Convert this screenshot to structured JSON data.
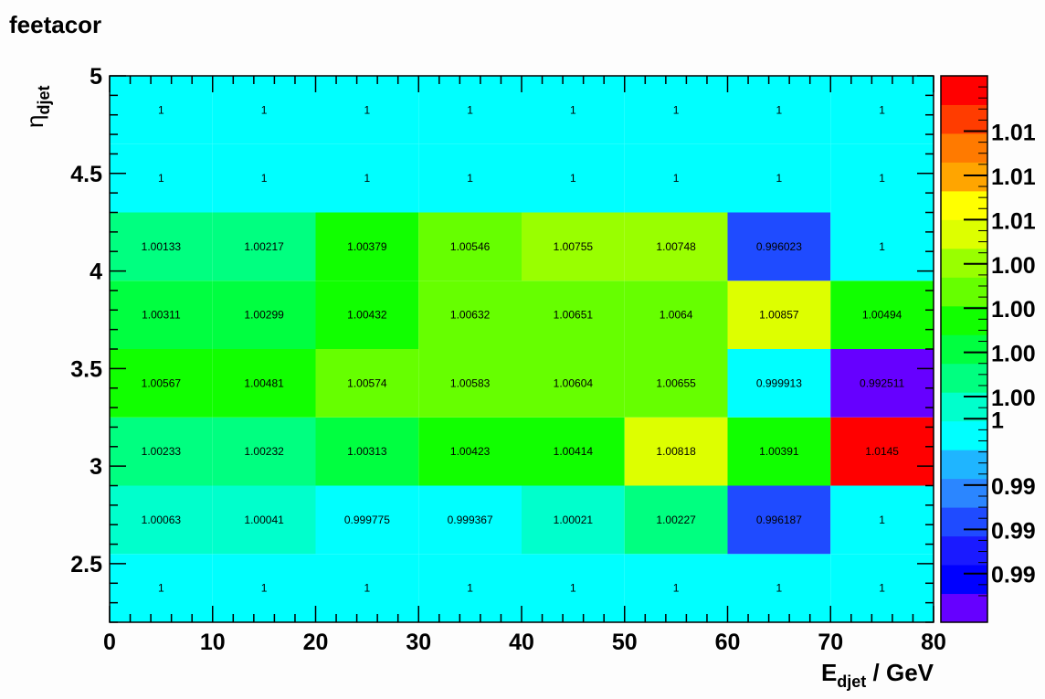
{
  "title": "feetacor",
  "chart_data": {
    "type": "heatmap",
    "xlabel": "E",
    "xlabel_sub": "djet",
    "xlabel_unit": " / GeV",
    "ylabel": "η",
    "ylabel_sub": "djet",
    "x_edges": [
      0,
      10,
      20,
      30,
      40,
      50,
      60,
      70,
      80
    ],
    "y_edges": [
      2.2,
      2.55,
      2.9,
      3.25,
      3.6,
      3.95,
      4.3,
      4.65,
      5.0
    ],
    "xlim": [
      0,
      80
    ],
    "ylim": [
      2.2,
      5.0
    ],
    "x_ticks": [
      "0",
      "10",
      "20",
      "30",
      "40",
      "50",
      "60",
      "70",
      "80"
    ],
    "y_ticks": [
      "2.5",
      "3",
      "3.5",
      "4",
      "4.5",
      "5"
    ],
    "y_tick_values": [
      2.5,
      3.0,
      3.5,
      4.0,
      4.5,
      5.0
    ],
    "z_range": [
      0.9908,
      1.0155
    ],
    "values": [
      [
        1,
        1,
        1,
        1,
        1,
        1,
        1,
        1
      ],
      [
        1.00063,
        1.00041,
        0.999775,
        0.999367,
        1.00021,
        1.00227,
        0.996187,
        1
      ],
      [
        1.00233,
        1.00232,
        1.00313,
        1.00423,
        1.00414,
        1.00818,
        1.00391,
        1.0145
      ],
      [
        1.00567,
        1.00481,
        1.00574,
        1.00583,
        1.00604,
        1.00655,
        0.999913,
        0.992511
      ],
      [
        1.00311,
        1.00299,
        1.00432,
        1.00632,
        1.00651,
        1.0064,
        1.00857,
        1.00494
      ],
      [
        1.00133,
        1.00217,
        1.00379,
        1.00546,
        1.00755,
        1.00748,
        0.996023,
        1
      ],
      [
        1,
        1,
        1,
        1,
        1,
        1,
        1,
        1
      ],
      [
        1,
        1,
        1,
        1,
        1,
        1,
        1,
        1
      ]
    ],
    "labels": [
      [
        "1",
        "1",
        "1",
        "1",
        "1",
        "1",
        "1",
        "1"
      ],
      [
        "1.00063",
        "1.00041",
        "0.999775",
        "0.999367",
        "1.00021",
        "1.00227",
        "0.996187",
        "1"
      ],
      [
        "1.00233",
        "1.00232",
        "1.00313",
        "1.00423",
        "1.00414",
        "1.00818",
        "1.00391",
        "1.0145"
      ],
      [
        "1.00567",
        "1.00481",
        "1.00574",
        "1.00583",
        "1.00604",
        "1.00655",
        "0.999913",
        "0.992511"
      ],
      [
        "1.00311",
        "1.00299",
        "1.00432",
        "1.00632",
        "1.00651",
        "1.0064",
        "1.00857",
        "1.00494"
      ],
      [
        "1.00133",
        "1.00217",
        "1.00379",
        "1.00546",
        "1.00755",
        "1.00748",
        "0.996023",
        "1"
      ],
      [
        "1",
        "1",
        "1",
        "1",
        "1",
        "1",
        "1",
        "1"
      ],
      [
        "1",
        "1",
        "1",
        "1",
        "1",
        "1",
        "1",
        "1"
      ]
    ],
    "palette": [
      "#6600ff",
      "#0000ff",
      "#1a1aff",
      "#1f4bff",
      "#2b86ff",
      "#1fb5ff",
      "#00ffff",
      "#00ffcc",
      "#00ff80",
      "#00ff40",
      "#11ff00",
      "#66ff00",
      "#99ff00",
      "#ddff00",
      "#ffff00",
      "#ffa500",
      "#ff7a00",
      "#ff3c00",
      "#ff0000"
    ],
    "palette_labels": [
      "0.99",
      "0.99",
      "0.99",
      "1",
      "1.00",
      "1.00",
      "1.00",
      "1.00",
      "1.01",
      "1.01",
      "1.01"
    ],
    "cell_colors": [
      [
        "#00ffff",
        "#00ffff",
        "#00ffff",
        "#00ffff",
        "#00ffff",
        "#00ffff",
        "#00ffff",
        "#00ffff"
      ],
      [
        "#00ffcc",
        "#00ffcc",
        "#00ffff",
        "#00ffff",
        "#00ffcc",
        "#00ff80",
        "#1f4bff",
        "#00ffff"
      ],
      [
        "#00ff80",
        "#00ff80",
        "#00ff40",
        "#11ff00",
        "#11ff00",
        "#ddff00",
        "#11ff00",
        "#ff0000"
      ],
      [
        "#11ff00",
        "#11ff00",
        "#66ff00",
        "#66ff00",
        "#66ff00",
        "#66ff00",
        "#00ffff",
        "#6600ff"
      ],
      [
        "#00ff40",
        "#00ff40",
        "#11ff00",
        "#66ff00",
        "#66ff00",
        "#66ff00",
        "#ddff00",
        "#11ff00"
      ],
      [
        "#00ff80",
        "#00ff80",
        "#11ff00",
        "#66ff00",
        "#99ff00",
        "#99ff00",
        "#1f4bff",
        "#00ffff"
      ],
      [
        "#00ffff",
        "#00ffff",
        "#00ffff",
        "#00ffff",
        "#00ffff",
        "#00ffff",
        "#00ffff",
        "#00ffff"
      ],
      [
        "#00ffff",
        "#00ffff",
        "#00ffff",
        "#00ffff",
        "#00ffff",
        "#00ffff",
        "#00ffff",
        "#00ffff"
      ]
    ]
  }
}
